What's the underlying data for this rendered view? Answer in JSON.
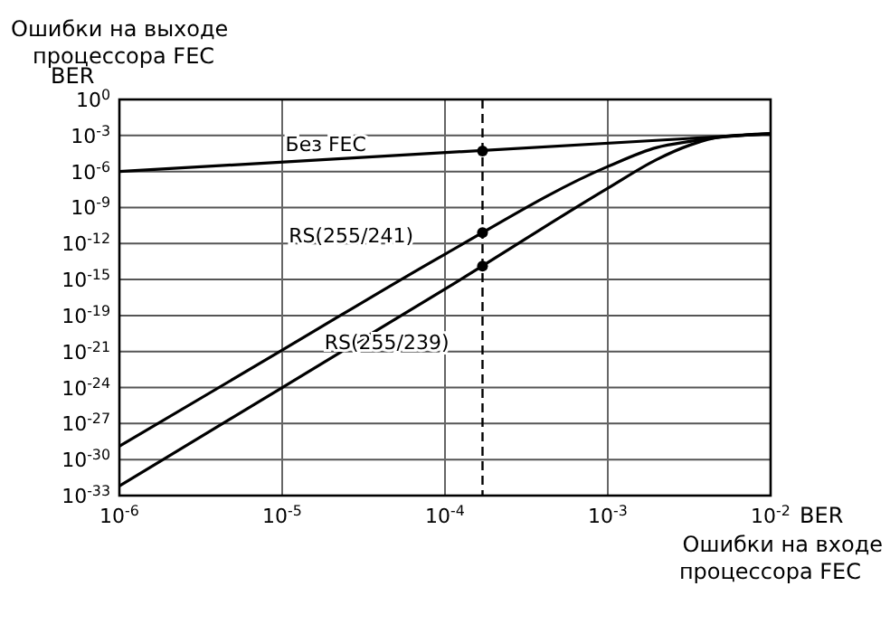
{
  "chart_data": {
    "type": "line",
    "xlabel": "BER",
    "ylabel": "BER",
    "annotations": [
      "Ошибки на выходе процессора FEC",
      "Ошибки на входе процессора FEC"
    ],
    "log": "xy",
    "grid": true,
    "marker": "none",
    "line_style": "solid",
    "xlim": [
      1e-06,
      0.01
    ],
    "ylim": [
      1e-33,
      1
    ],
    "xticks": [
      {
        "value": 1e-06,
        "label": "10$^{-6}$"
      },
      {
        "value": 1e-05,
        "label": "10$^{-5}$"
      },
      {
        "value": 0.0001,
        "label": "10$^{-4}$"
      },
      {
        "value": 0.001,
        "label": "10$^{-3}$"
      },
      {
        "value": 0.01,
        "label": "10$^{-2}$"
      }
    ],
    "yticks": [
      {
        "value": 1,
        "label": "10$^{0}$"
      },
      {
        "value": 0.001,
        "label": "10$^{-3}$"
      },
      {
        "value": 1e-06,
        "label": "10$^{-6}$"
      },
      {
        "value": 1e-09,
        "label": "10$^{-9}$"
      },
      {
        "value": 1e-12,
        "label": "10$^{-12}$"
      },
      {
        "value": 1e-15,
        "label": "10$^{-15}$"
      },
      {
        "value": 1e-18,
        "label": "10$^{-19}$"
      },
      {
        "value": 1e-21,
        "label": "10$^{-21}$"
      },
      {
        "value": 1e-24,
        "label": "10$^{-24}$"
      },
      {
        "value": 1e-27,
        "label": "10$^{-27}$"
      },
      {
        "value": 1e-30,
        "label": "10$^{-30}$"
      },
      {
        "value": 1e-33,
        "label": "10$^{-33}$"
      }
    ],
    "ref_lines": [
      {
        "axis": "x",
        "value": 0.00017,
        "line_style": "dashed",
        "color": "#000000"
      }
    ],
    "series": [
      {
        "name": "Без FEC",
        "color": "#000000",
        "x": [
          1e-06,
          0.01
        ],
        "values": [
          1e-06,
          0.0014
        ]
      },
      {
        "name": "RS(255/241)",
        "color": "#000000",
        "x": [
          1e-06,
          1e-05,
          0.0001,
          0.001,
          0.002,
          0.0032,
          0.0045,
          0.01
        ],
        "values": [
          1.3e-29,
          1.3e-21,
          1.3e-13,
          2.6e-06,
          0.0001,
          0.00032,
          0.00063,
          0.0014
        ]
      },
      {
        "name": "RS(255/239)",
        "color": "#000000",
        "x": [
          1e-06,
          1e-05,
          0.0001,
          0.001,
          0.002,
          0.0032,
          0.005,
          0.01
        ],
        "values": [
          6.3e-33,
          1e-24,
          1.6e-16,
          4e-08,
          1e-05,
          0.00016,
          0.00079,
          0.0014
        ]
      },
      {
        "type": "scatter",
        "marker": "circle",
        "color": "#000000",
        "x": [
          0.00017,
          0.00017,
          0.00017
        ],
        "values": [
          5e-05,
          8e-12,
          1.3e-14
        ]
      }
    ]
  }
}
